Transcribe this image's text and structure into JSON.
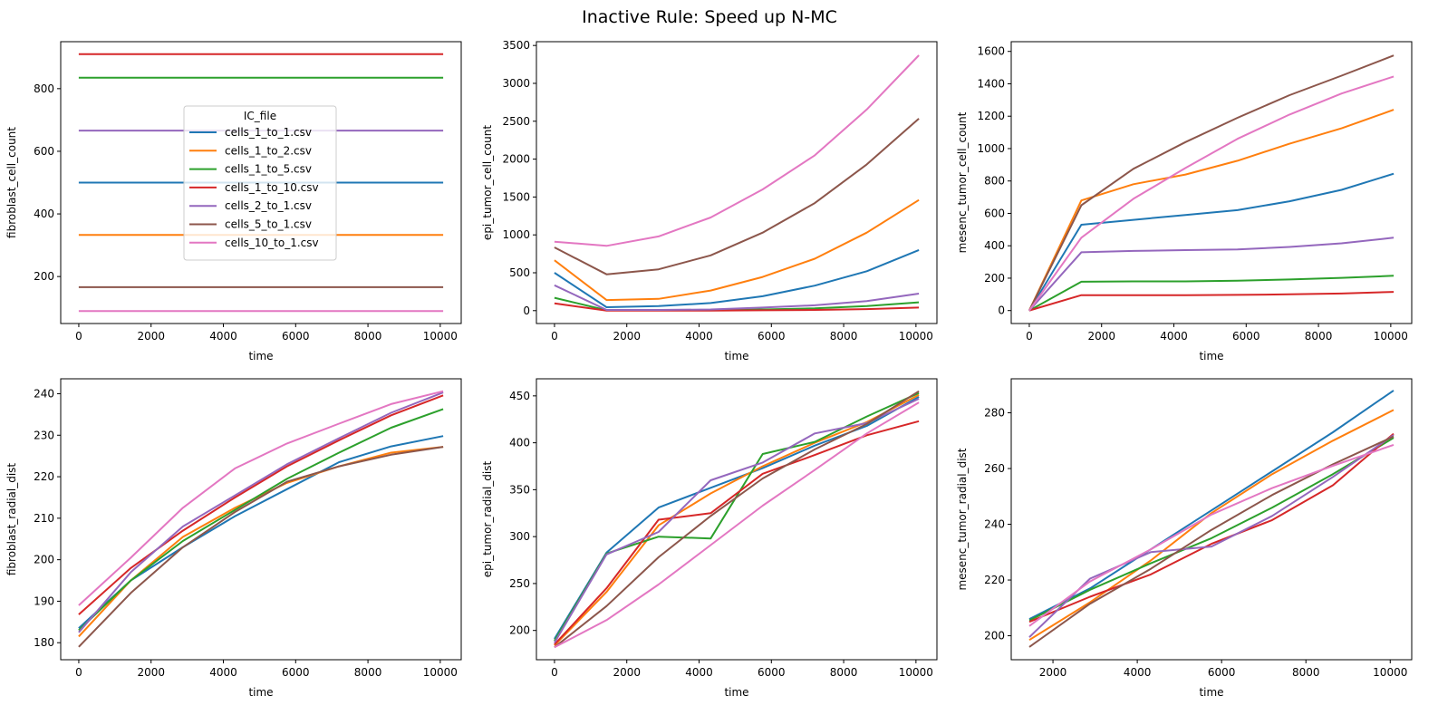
{
  "figure": {
    "title": "Inactive Rule: Speed up N-MC"
  },
  "legend": {
    "title": "IC_file",
    "placement": "center (top-left subplot)"
  },
  "series_meta": [
    {
      "name": "cells_1_to_1.csv",
      "color": "#1f77b4"
    },
    {
      "name": "cells_1_to_2.csv",
      "color": "#ff7f0e"
    },
    {
      "name": "cells_1_to_5.csv",
      "color": "#2ca02c"
    },
    {
      "name": "cells_1_to_10.csv",
      "color": "#d62728"
    },
    {
      "name": "cells_2_to_1.csv",
      "color": "#9467bd"
    },
    {
      "name": "cells_5_to_1.csv",
      "color": "#8c564b"
    },
    {
      "name": "cells_10_to_1.csv",
      "color": "#e377c2"
    }
  ],
  "chart_data": [
    {
      "type": "line",
      "xlabel": "time",
      "ylabel": "fibroblast_cell_count",
      "xlim": [
        -500,
        10580
      ],
      "ylim": [
        50,
        950
      ],
      "xticks": [
        0,
        2000,
        4000,
        6000,
        8000,
        10000
      ],
      "yticks": [
        200,
        400,
        600,
        800
      ],
      "grid": false,
      "x": [
        0,
        1440,
        2880,
        4320,
        5760,
        7200,
        8640,
        10080
      ],
      "series": [
        {
          "name": "cells_1_to_1.csv",
          "values": [
            500,
            500,
            500,
            500,
            500,
            500,
            500,
            500
          ]
        },
        {
          "name": "cells_1_to_2.csv",
          "values": [
            333,
            333,
            333,
            333,
            333,
            333,
            333,
            333
          ]
        },
        {
          "name": "cells_1_to_5.csv",
          "values": [
            835,
            835,
            835,
            835,
            835,
            835,
            835,
            835
          ]
        },
        {
          "name": "cells_1_to_10.csv",
          "values": [
            910,
            910,
            910,
            910,
            910,
            910,
            910,
            910
          ]
        },
        {
          "name": "cells_2_to_1.csv",
          "values": [
            666,
            666,
            666,
            666,
            666,
            666,
            666,
            666
          ]
        },
        {
          "name": "cells_5_to_1.csv",
          "values": [
            166,
            166,
            166,
            166,
            166,
            166,
            166,
            166
          ]
        },
        {
          "name": "cells_10_to_1.csv",
          "values": [
            90,
            90,
            90,
            90,
            90,
            90,
            90,
            90
          ]
        }
      ]
    },
    {
      "type": "line",
      "xlabel": "time",
      "ylabel": "epi_tumor_cell_count",
      "xlim": [
        -500,
        10580
      ],
      "ylim": [
        -170,
        3550
      ],
      "xticks": [
        0,
        2000,
        4000,
        6000,
        8000,
        10000
      ],
      "yticks": [
        0,
        500,
        1000,
        1500,
        2000,
        2500,
        3000,
        3500
      ],
      "grid": false,
      "x": [
        0,
        1440,
        2880,
        4320,
        5760,
        7200,
        8640,
        10080
      ],
      "series": [
        {
          "name": "cells_1_to_1.csv",
          "values": [
            500,
            45,
            60,
            100,
            190,
            330,
            520,
            800
          ]
        },
        {
          "name": "cells_1_to_2.csv",
          "values": [
            665,
            140,
            155,
            265,
            445,
            685,
            1030,
            1460
          ]
        },
        {
          "name": "cells_1_to_5.csv",
          "values": [
            170,
            5,
            5,
            10,
            15,
            30,
            60,
            110
          ]
        },
        {
          "name": "cells_1_to_10.csv",
          "values": [
            95,
            0,
            0,
            0,
            5,
            10,
            20,
            40
          ]
        },
        {
          "name": "cells_2_to_1.csv",
          "values": [
            335,
            10,
            10,
            15,
            40,
            70,
            125,
            225
          ]
        },
        {
          "name": "cells_5_to_1.csv",
          "values": [
            835,
            480,
            545,
            730,
            1030,
            1420,
            1930,
            2535
          ]
        },
        {
          "name": "cells_10_to_1.csv",
          "values": [
            910,
            855,
            980,
            1230,
            1600,
            2050,
            2655,
            3370
          ]
        }
      ]
    },
    {
      "type": "line",
      "xlabel": "time",
      "ylabel": "mesenc_tumor_cell_count",
      "xlim": [
        -500,
        10580
      ],
      "ylim": [
        -80,
        1660
      ],
      "xticks": [
        0,
        2000,
        4000,
        6000,
        8000,
        10000
      ],
      "yticks": [
        0,
        200,
        400,
        600,
        800,
        1000,
        1200,
        1400,
        1600
      ],
      "grid": false,
      "x": [
        0,
        1440,
        2880,
        4320,
        5760,
        7200,
        8640,
        10080
      ],
      "series": [
        {
          "name": "cells_1_to_1.csv",
          "values": [
            0,
            530,
            560,
            590,
            620,
            675,
            745,
            845
          ]
        },
        {
          "name": "cells_1_to_2.csv",
          "values": [
            0,
            680,
            780,
            840,
            925,
            1030,
            1125,
            1240
          ]
        },
        {
          "name": "cells_1_to_5.csv",
          "values": [
            0,
            178,
            180,
            180,
            184,
            192,
            202,
            215
          ]
        },
        {
          "name": "cells_1_to_10.csv",
          "values": [
            0,
            95,
            95,
            95,
            97,
            100,
            105,
            115
          ]
        },
        {
          "name": "cells_2_to_1.csv",
          "values": [
            0,
            360,
            368,
            373,
            377,
            393,
            415,
            450
          ]
        },
        {
          "name": "cells_5_to_1.csv",
          "values": [
            0,
            650,
            875,
            1040,
            1190,
            1330,
            1450,
            1575
          ]
        },
        {
          "name": "cells_10_to_1.csv",
          "values": [
            0,
            450,
            690,
            880,
            1060,
            1210,
            1340,
            1445
          ]
        }
      ]
    },
    {
      "type": "line",
      "xlabel": "time",
      "ylabel": "fibroblast_radial_dist",
      "xlim": [
        -500,
        10580
      ],
      "ylim": [
        175.9,
        243.6
      ],
      "xticks": [
        0,
        2000,
        4000,
        6000,
        8000,
        10000
      ],
      "yticks": [
        180,
        190,
        200,
        210,
        220,
        230,
        240
      ],
      "grid": false,
      "x": [
        0,
        1440,
        2880,
        4320,
        5760,
        7200,
        8640,
        10080
      ],
      "series": [
        {
          "name": "cells_1_to_1.csv",
          "values": [
            183.5,
            195,
            203,
            210.5,
            217,
            223.5,
            227.3,
            229.8
          ]
        },
        {
          "name": "cells_1_to_2.csv",
          "values": [
            181.5,
            195,
            205.5,
            212.5,
            218.5,
            222.5,
            225.8,
            227.2
          ]
        },
        {
          "name": "cells_1_to_5.csv",
          "values": [
            183,
            195,
            204.5,
            212,
            219.5,
            225.8,
            231.8,
            236.3
          ]
        },
        {
          "name": "cells_1_to_10.csv",
          "values": [
            186.8,
            198,
            207,
            215,
            222.5,
            228.8,
            234.8,
            239.6
          ]
        },
        {
          "name": "cells_2_to_1.csv",
          "values": [
            182.5,
            197,
            208,
            215.5,
            223,
            229.3,
            235.4,
            240.3
          ]
        },
        {
          "name": "cells_5_to_1.csv",
          "values": [
            179,
            192,
            203,
            211.5,
            218.8,
            222.5,
            225.3,
            227.2
          ]
        },
        {
          "name": "cells_10_to_1.csv",
          "values": [
            189,
            200.5,
            212.5,
            222,
            228,
            232.8,
            237.5,
            240.6
          ]
        }
      ]
    },
    {
      "type": "line",
      "xlabel": "time",
      "ylabel": "epi_tumor_radial_dist",
      "xlim": [
        -500,
        10580
      ],
      "ylim": [
        168.8,
        468.2
      ],
      "xticks": [
        0,
        2000,
        4000,
        6000,
        8000,
        10000
      ],
      "yticks": [
        200,
        250,
        300,
        350,
        400,
        450
      ],
      "grid": false,
      "x": [
        0,
        1440,
        2880,
        4320,
        5760,
        7200,
        8640,
        10080
      ],
      "series": [
        {
          "name": "cells_1_to_1.csv",
          "values": [
            191,
            283,
            331,
            352,
            373,
            397,
            418,
            449
          ]
        },
        {
          "name": "cells_1_to_2.csv",
          "values": [
            184,
            241,
            312,
            346,
            375,
            400,
            422,
            451
          ]
        },
        {
          "name": "cells_1_to_5.csv",
          "values": [
            189,
            282,
            300,
            298,
            388,
            401,
            428,
            453
          ]
        },
        {
          "name": "cells_1_to_10.csv",
          "values": [
            185,
            245,
            318,
            325,
            367,
            387,
            408,
            423
          ]
        },
        {
          "name": "cells_2_to_1.csv",
          "values": [
            187,
            281,
            305,
            360,
            379,
            410,
            421,
            447
          ]
        },
        {
          "name": "cells_5_to_1.csv",
          "values": [
            182,
            226,
            278,
            322,
            362,
            393,
            420,
            455
          ]
        },
        {
          "name": "cells_10_to_1.csv",
          "values": [
            182,
            211,
            249,
            291,
            333,
            371,
            410,
            443
          ]
        }
      ]
    },
    {
      "type": "line",
      "xlabel": "time",
      "ylabel": "mesenc_tumor_radial_dist",
      "xlim": [
        1010,
        10510
      ],
      "ylim": [
        191.4,
        292.2
      ],
      "xticks": [
        2000,
        4000,
        6000,
        8000,
        10000
      ],
      "yticks": [
        200,
        220,
        240,
        260,
        280
      ],
      "grid": false,
      "x": [
        1440,
        2880,
        4320,
        5760,
        7200,
        8640,
        10080
      ],
      "series": [
        {
          "name": "cells_1_to_1.csv",
          "values": [
            206,
            217,
            231,
            245,
            259,
            273,
            288
          ]
        },
        {
          "name": "cells_1_to_2.csv",
          "values": [
            198.5,
            212,
            227,
            244,
            258,
            270,
            281
          ]
        },
        {
          "name": "cells_1_to_5.csv",
          "values": [
            205.5,
            216.5,
            226,
            235,
            246,
            258,
            271
          ]
        },
        {
          "name": "cells_1_to_10.csv",
          "values": [
            205,
            214,
            222,
            233,
            241.5,
            254,
            272.5
          ]
        },
        {
          "name": "cells_2_to_1.csv",
          "values": [
            199.5,
            220.5,
            230,
            232,
            243,
            257,
            272
          ]
        },
        {
          "name": "cells_5_to_1.csv",
          "values": [
            196,
            211.5,
            224,
            238,
            250.5,
            261.5,
            271.5
          ]
        },
        {
          "name": "cells_10_to_1.csv",
          "values": [
            203.5,
            219.5,
            231,
            243.5,
            253,
            261,
            268.5
          ]
        }
      ]
    }
  ]
}
